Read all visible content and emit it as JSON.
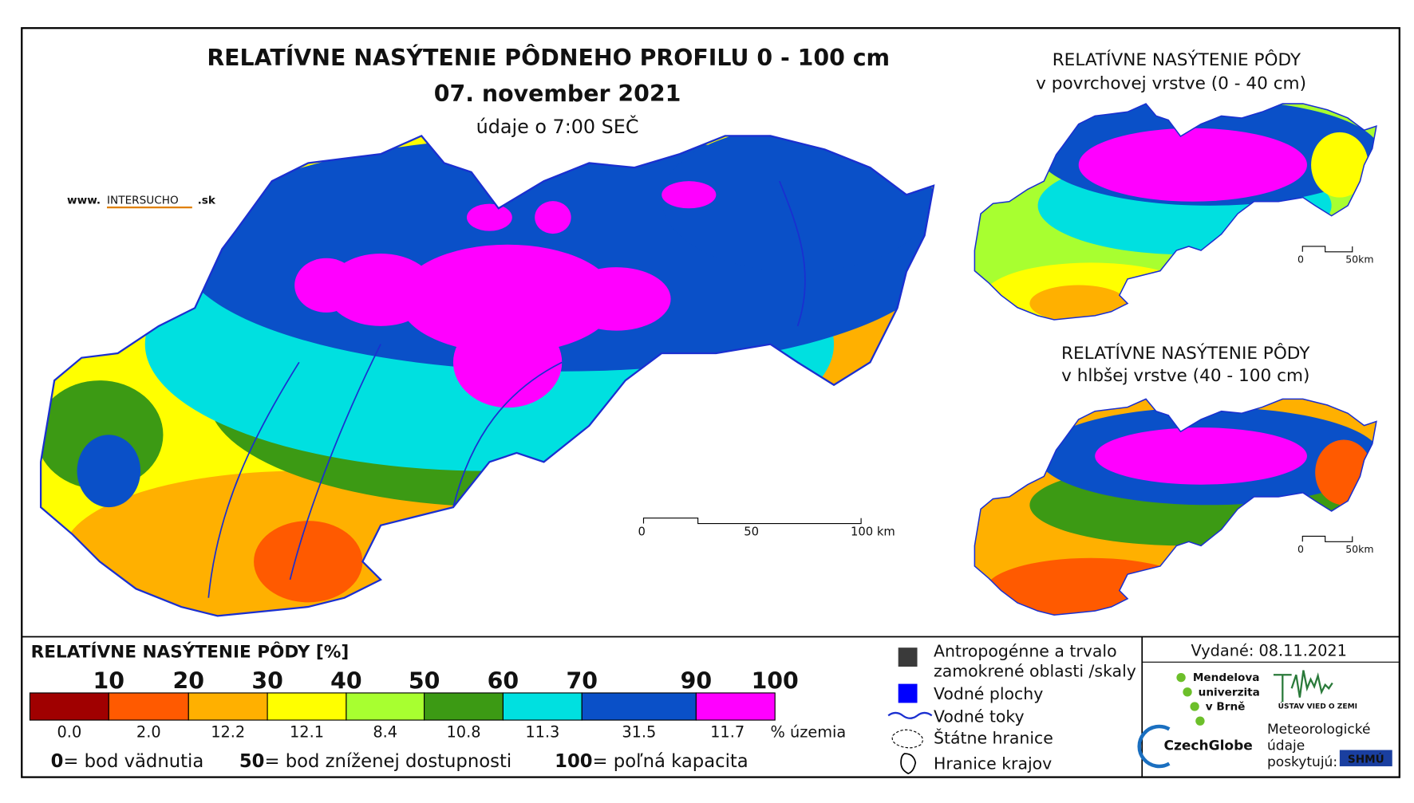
{
  "header": {
    "title": "RELATÍVNE NASÝTENIE PÔDNEHO PROFILU 0 - 100 cm",
    "date": "07. november 2021",
    "time_note": "údaje o 7:00 SEČ",
    "website": [
      "www.",
      "INTERSUCHO",
      ".sk"
    ]
  },
  "main_map": {
    "scale": [
      "0",
      "50",
      "100 km"
    ]
  },
  "inset_top": {
    "title": [
      "RELATÍVNE NASÝTENIE PÔDY",
      "v povrchovej vrstve (0 - 40 cm)"
    ],
    "scale": [
      "0",
      "50km"
    ]
  },
  "inset_bottom": {
    "title": [
      "RELATÍVNE NASÝTENIE PÔDY",
      "v hlbšej vrstve (40 - 100 cm)"
    ],
    "scale": [
      "0",
      "50km"
    ]
  },
  "legend": {
    "title": "RELATÍVNE NASÝTENIE PÔDY [%]",
    "thresholds": [
      "10",
      "20",
      "30",
      "40",
      "50",
      "60",
      "70",
      "90",
      "100"
    ],
    "classes": [
      {
        "color": "#a00000",
        "share": "0.0"
      },
      {
        "color": "#ff5a00",
        "share": "2.0"
      },
      {
        "color": "#ffb000",
        "share": "12.2"
      },
      {
        "color": "#ffff00",
        "share": "12.1"
      },
      {
        "color": "#a8ff30",
        "share": "8.4"
      },
      {
        "color": "#3c9a14",
        "share": "10.8"
      },
      {
        "color": "#00e0e0",
        "share": "11.3"
      },
      {
        "color": "#0a50c8",
        "share": "31.5"
      },
      {
        "color": "#ff00ff",
        "share": "11.7"
      }
    ],
    "unit": "% územia",
    "notes": [
      {
        "value": "0",
        "text": "= bod vädnutia"
      },
      {
        "value": "50",
        "text": "= bod zníženej dostupnosti"
      },
      {
        "value": "100",
        "text": "= poľná kapacita"
      }
    ]
  },
  "symbols": [
    "Antropogénne a trvalo",
    "zamokrené oblasti /skaly",
    "Vodné plochy",
    "Vodné toky",
    "Štátne hranice",
    "Hranice krajov"
  ],
  "issued": "Vydané: 08.11.2021",
  "logos": {
    "mendel": [
      "Mendelova",
      "univerzita",
      "v Brně"
    ],
    "czechglobe": "CzechGlobe",
    "uvz": "ÚSTAV VIED O ZEMI",
    "provider": [
      "Meteorologické",
      "údaje",
      "poskytujú:"
    ],
    "shmu": "SHMÚ"
  }
}
